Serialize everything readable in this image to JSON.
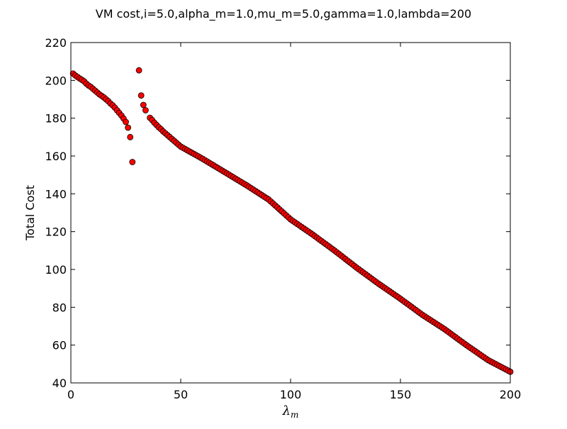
{
  "chart_data": {
    "type": "scatter",
    "title": "VM cost,i=5.0,alpha_m=1.0,mu_m=5.0,gamma=1.0,lambda=200",
    "xlabel_main": "λ",
    "xlabel_sub": "m",
    "ylabel": "Total Cost",
    "xlim": [
      0,
      200
    ],
    "ylim": [
      40,
      220
    ],
    "xticks": [
      0,
      50,
      100,
      150,
      200
    ],
    "yticks": [
      40,
      60,
      80,
      100,
      120,
      140,
      160,
      180,
      200,
      220
    ],
    "grid": false,
    "marker_color": "#ff0000",
    "marker_edge_color": "#000000",
    "series": [
      {
        "x": [
          1,
          2,
          3,
          4,
          5,
          6,
          7,
          8,
          9,
          10,
          11,
          12,
          13,
          14,
          15,
          16,
          17,
          18,
          19,
          20,
          21,
          22,
          23,
          24,
          25,
          26,
          27,
          28,
          29,
          31,
          32,
          33,
          34,
          36,
          37,
          38,
          39,
          40,
          41,
          42,
          43,
          44,
          45,
          46,
          47,
          48,
          49,
          50,
          60,
          70,
          80,
          90,
          100,
          110,
          120,
          130,
          140,
          150,
          160,
          170,
          180,
          190,
          199,
          200
        ],
        "y": [
          203.6,
          202.6,
          201.8,
          201.0,
          200.3,
          199.5,
          198.3,
          197.3,
          196.6,
          195.6,
          194.6,
          193.6,
          192.6,
          191.8,
          191.0,
          190.0,
          189.0,
          187.8,
          186.8,
          185.6,
          184.2,
          182.8,
          181.4,
          179.8,
          178.0,
          175.0,
          170.0,
          156.8,
          null,
          205.3,
          192.0,
          187.0,
          184.2,
          180.2,
          179.0,
          177.6,
          176.4,
          175.2,
          174.2,
          173.0,
          172.0,
          171.0,
          170.0,
          169.0,
          168.0,
          167.0,
          166.0,
          165.0,
          158.5,
          151.5,
          144.5,
          137.0,
          126.5,
          118.5,
          110.0,
          101.0,
          92.5,
          84.5,
          76.0,
          68.5,
          60.0,
          52.0,
          46.5,
          45.9
        ]
      }
    ]
  }
}
